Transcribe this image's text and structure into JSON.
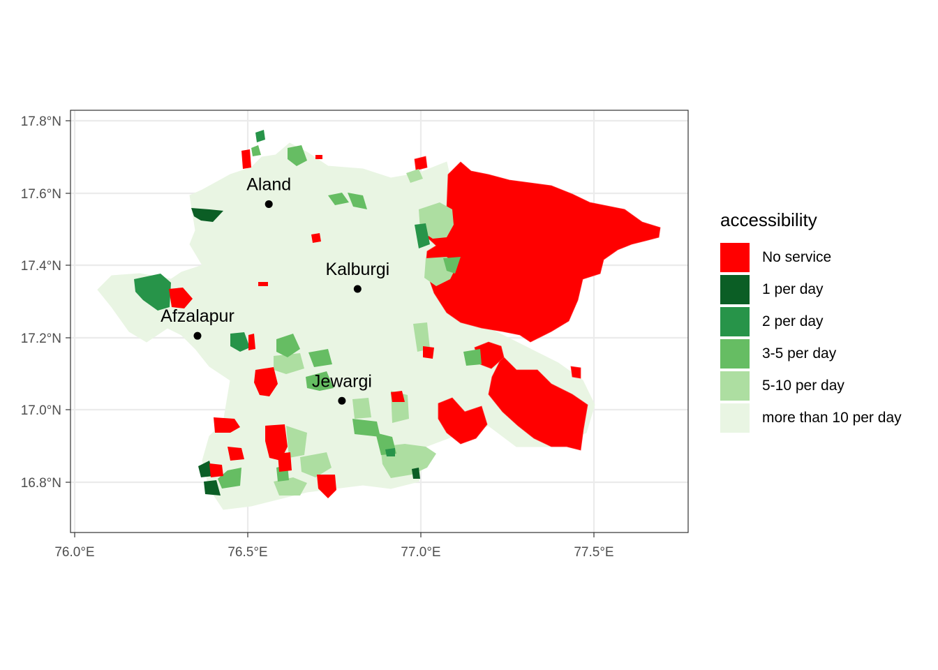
{
  "map": {
    "x_ticks": [
      "76.0°E",
      "76.5°E",
      "77.0°E",
      "77.5°E"
    ],
    "y_ticks": [
      "17.8°N",
      "17.6°N",
      "17.4°N",
      "17.2°N",
      "17.0°N",
      "16.8°N"
    ],
    "cities": [
      {
        "name": "Aland",
        "lon": 76.565,
        "lat": 17.565
      },
      {
        "name": "Kalburgi",
        "lon": 76.82,
        "lat": 17.33
      },
      {
        "name": "Afzalapur",
        "lon": 76.36,
        "lat": 17.2
      },
      {
        "name": "Jewargi",
        "lon": 76.775,
        "lat": 17.02
      }
    ],
    "xlim": [
      75.995,
      77.77
    ],
    "ylim": [
      16.655,
      17.825
    ],
    "grid": true
  },
  "legend": {
    "title": "accessibility",
    "items": [
      {
        "label": "No service",
        "color": "#ff0000"
      },
      {
        "label": "1 per day",
        "color": "#0b5e25"
      },
      {
        "label": "2 per day",
        "color": "#279449"
      },
      {
        "label": "3-5 per day",
        "color": "#66bd63"
      },
      {
        "label": "5-10 per day",
        "color": "#addea1"
      },
      {
        "label": "more than 10 per day",
        "color": "#e9f5e3"
      }
    ]
  }
}
